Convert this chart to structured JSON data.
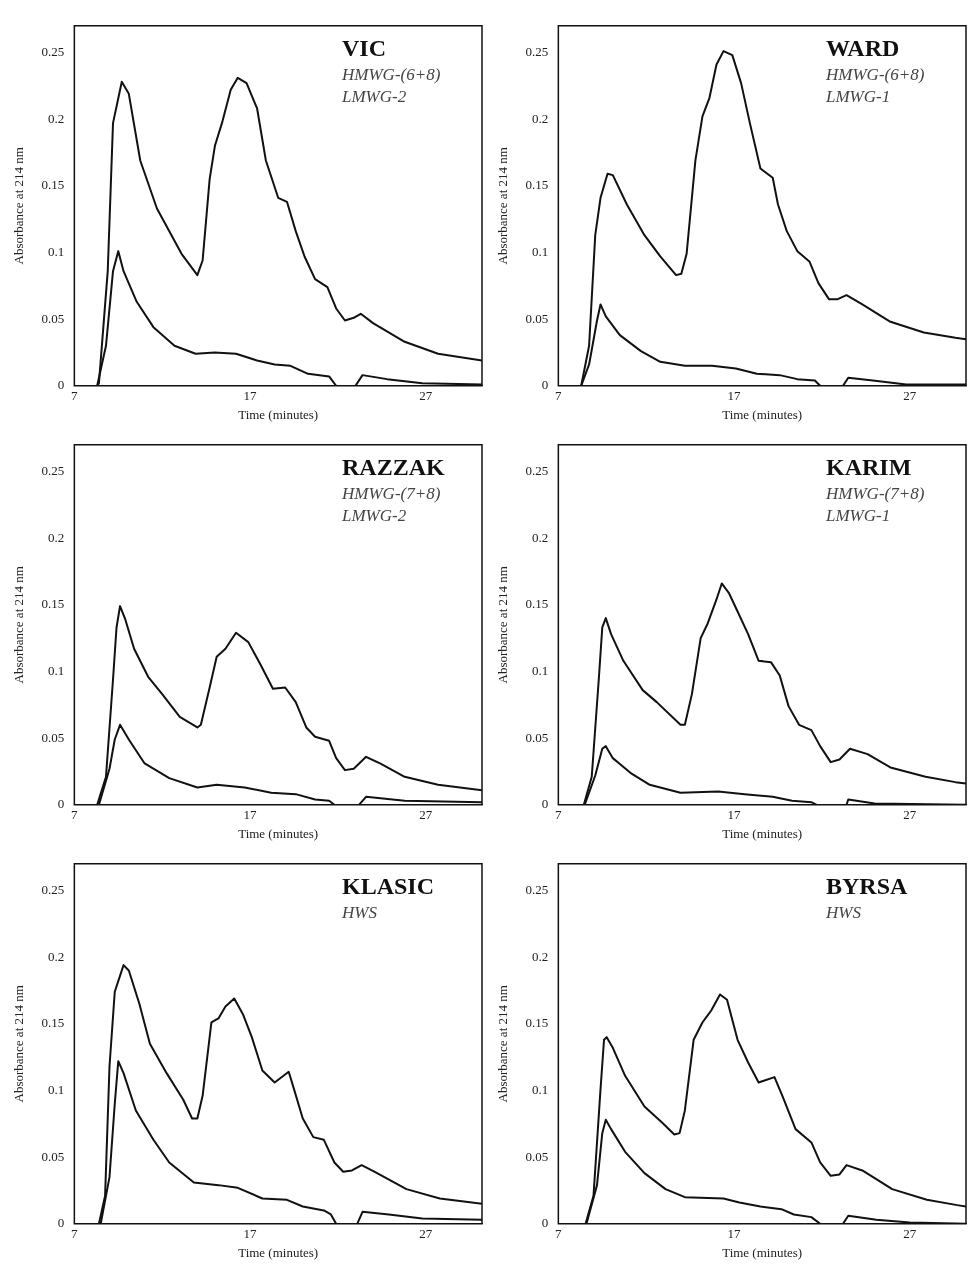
{
  "chart_data": [
    {
      "type": "line",
      "xlabel": "Time (minutes)",
      "ylabel": "Absorbance at 214 nm",
      "xlim": [
        7,
        30.2
      ],
      "ylim": [
        0,
        0.27
      ],
      "xticks": [
        7,
        17,
        27
      ],
      "yticks": [
        0,
        0.05,
        0.1,
        0.15,
        0.2,
        0.25
      ],
      "annotations": [
        "VIC",
        "HMWG-(6+8)",
        "LMWG-2"
      ],
      "series": [
        {
          "color": "#111111",
          "x": [
            8.3,
            8.4,
            8.9,
            9.2,
            9.7,
            10.1,
            10.75,
            11.7,
            13.1,
            14.0,
            14.3,
            14.7,
            15.0,
            15.4,
            15.9,
            16.3,
            16.8,
            17.4,
            17.9,
            18.6,
            19.1,
            19.6,
            20.1,
            20.7,
            21.4,
            21.9,
            22.4,
            22.9,
            23.3,
            24.0,
            25.8,
            27.7,
            30.2
          ],
          "values": [
            0,
            0.002,
            0.086,
            0.197,
            0.228,
            0.219,
            0.169,
            0.133,
            0.099,
            0.083,
            0.094,
            0.155,
            0.18,
            0.197,
            0.222,
            0.231,
            0.227,
            0.208,
            0.169,
            0.141,
            0.138,
            0.116,
            0.097,
            0.08,
            0.074,
            0.058,
            0.049,
            0.051,
            0.054,
            0.047,
            0.033,
            0.024,
            0.019
          ]
        },
        {
          "color": "#111111",
          "x": [
            8.3,
            8.8,
            9.2,
            9.5,
            9.8,
            10.55,
            11.5,
            12.7,
            13.9,
            15.0,
            16.2,
            17.4,
            18.4,
            19.3,
            20.3,
            21.5,
            21.9,
            22.5,
            23.0,
            23.4,
            24.8,
            26.8,
            30.2
          ],
          "values": [
            0,
            0.03,
            0.086,
            0.101,
            0.086,
            0.063,
            0.044,
            0.03,
            0.024,
            0.025,
            0.024,
            0.019,
            0.016,
            0.015,
            0.009,
            0.007,
            0,
            null,
            0,
            0.008,
            0.005,
            0.002,
            0.001
          ]
        }
      ]
    },
    {
      "type": "line",
      "xlabel": "Time (minutes)",
      "ylabel": "Absorbance at 214 nm",
      "xlim": [
        7,
        30.2
      ],
      "ylim": [
        0,
        0.27
      ],
      "xticks": [
        7,
        17,
        27
      ],
      "yticks": [
        0,
        0.05,
        0.1,
        0.15,
        0.2,
        0.25
      ],
      "annotations": [
        "WARD",
        "HMWG-(6+8)",
        "LMWG-1"
      ],
      "series": [
        {
          "color": "#111111",
          "x": [
            8.3,
            8.75,
            9.1,
            9.4,
            9.8,
            10.1,
            10.9,
            11.9,
            12.8,
            13.7,
            14.0,
            14.3,
            14.8,
            15.2,
            15.6,
            16.0,
            16.4,
            16.9,
            17.4,
            17.9,
            18.5,
            19.2,
            19.5,
            20.0,
            20.6,
            21.3,
            21.8,
            22.4,
            22.9,
            23.4,
            24.3,
            25.9,
            27.8,
            29.6,
            30.2
          ],
          "values": [
            0,
            0.03,
            0.113,
            0.141,
            0.159,
            0.158,
            0.136,
            0.113,
            0.097,
            0.083,
            0.084,
            0.099,
            0.169,
            0.202,
            0.216,
            0.241,
            0.251,
            0.248,
            0.227,
            0.197,
            0.163,
            0.156,
            0.136,
            0.116,
            0.101,
            0.093,
            0.077,
            0.065,
            0.065,
            0.068,
            0.061,
            0.048,
            0.04,
            0.036,
            0.035
          ]
        },
        {
          "color": "#111111",
          "x": [
            8.3,
            8.75,
            9.2,
            9.4,
            9.7,
            10.5,
            11.7,
            12.8,
            14.2,
            15.75,
            17.1,
            18.3,
            19.6,
            20.6,
            21.6,
            21.9,
            22.5,
            23.2,
            23.5,
            24.9,
            26.8,
            30.2
          ],
          "values": [
            0,
            0.016,
            0.049,
            0.061,
            0.052,
            0.038,
            0.026,
            0.018,
            0.015,
            0.015,
            0.013,
            0.009,
            0.008,
            0.005,
            0.004,
            0,
            null,
            0,
            0.006,
            0.004,
            0.001,
            0.001
          ]
        }
      ]
    },
    {
      "type": "line",
      "xlabel": "Time (minutes)",
      "ylabel": "Absorbance at 214 nm",
      "xlim": [
        7,
        30.2
      ],
      "ylim": [
        0,
        0.27
      ],
      "xticks": [
        7,
        17,
        27
      ],
      "yticks": [
        0,
        0.05,
        0.1,
        0.15,
        0.2,
        0.25
      ],
      "annotations": [
        "RAZZAK",
        "HMWG-(7+8)",
        "LMWG-2"
      ],
      "series": [
        {
          "color": "#111111",
          "x": [
            8.3,
            8.8,
            9.2,
            9.4,
            9.6,
            9.9,
            10.4,
            11.2,
            12.0,
            13.0,
            14.0,
            14.2,
            14.7,
            15.1,
            15.6,
            16.2,
            16.9,
            17.6,
            18.3,
            19.0,
            19.6,
            20.2,
            20.7,
            21.5,
            21.9,
            22.4,
            22.9,
            23.6,
            24.4,
            25.8,
            27.7,
            30.2
          ],
          "values": [
            0,
            0.021,
            0.094,
            0.133,
            0.149,
            0.139,
            0.117,
            0.096,
            0.083,
            0.066,
            0.058,
            0.06,
            0.088,
            0.111,
            0.117,
            0.129,
            0.122,
            0.105,
            0.087,
            0.088,
            0.077,
            0.058,
            0.051,
            0.048,
            0.035,
            0.026,
            0.027,
            0.036,
            0.031,
            0.021,
            0.015,
            0.011
          ]
        },
        {
          "color": "#111111",
          "x": [
            8.4,
            9.0,
            9.3,
            9.6,
            10.1,
            11.0,
            12.4,
            14.0,
            15.1,
            16.7,
            18.2,
            19.6,
            20.7,
            21.5,
            21.8,
            22.5,
            23.2,
            23.6,
            25.8,
            30.2
          ],
          "values": [
            0,
            0.027,
            0.049,
            0.06,
            0.049,
            0.031,
            0.02,
            0.013,
            0.015,
            0.013,
            0.009,
            0.008,
            0.004,
            0.003,
            0,
            null,
            0,
            0.006,
            0.003,
            0.002
          ]
        }
      ]
    },
    {
      "type": "line",
      "xlabel": "Time (minutes)",
      "ylabel": "Absorbance at 214 nm",
      "xlim": [
        7,
        30.2
      ],
      "ylim": [
        0,
        0.27
      ],
      "xticks": [
        7,
        17,
        27
      ],
      "yticks": [
        0,
        0.05,
        0.1,
        0.15,
        0.2,
        0.25
      ],
      "annotations": [
        "KARIM",
        "HMWG-(7+8)",
        "LMWG-1"
      ],
      "series": [
        {
          "color": "#111111",
          "x": [
            8.45,
            8.9,
            9.3,
            9.5,
            9.7,
            10.0,
            10.7,
            11.8,
            12.6,
            13.95,
            14.2,
            14.6,
            15.1,
            15.5,
            16.0,
            16.3,
            16.7,
            17.2,
            17.8,
            18.4,
            19.1,
            19.6,
            20.1,
            20.7,
            21.4,
            21.9,
            22.5,
            23.0,
            23.6,
            24.6,
            25.9,
            27.9,
            29.6,
            30.2
          ],
          "values": [
            0,
            0.021,
            0.094,
            0.133,
            0.14,
            0.128,
            0.108,
            0.086,
            0.077,
            0.06,
            0.06,
            0.083,
            0.125,
            0.136,
            0.154,
            0.166,
            0.159,
            0.145,
            0.128,
            0.108,
            0.107,
            0.097,
            0.074,
            0.06,
            0.056,
            0.044,
            0.032,
            0.034,
            0.042,
            0.038,
            0.028,
            0.021,
            0.017,
            0.016
          ]
        },
        {
          "color": "#111111",
          "x": [
            8.5,
            9.1,
            9.5,
            9.7,
            10.1,
            11.1,
            12.2,
            13.95,
            16.1,
            17.6,
            19.2,
            20.3,
            21.4,
            21.7,
            22.5,
            23.4,
            23.5,
            25.0,
            30.2
          ],
          "values": [
            0,
            0.022,
            0.042,
            0.044,
            0.035,
            0.024,
            0.015,
            0.009,
            0.01,
            0.008,
            0.006,
            0.003,
            0.002,
            0,
            null,
            0,
            0.004,
            0.001,
            0
          ]
        }
      ]
    },
    {
      "type": "line",
      "xlabel": "Time (minutes)",
      "ylabel": "Absorbance at 214 nm",
      "xlim": [
        7,
        30.2
      ],
      "ylim": [
        0,
        0.27
      ],
      "xticks": [
        7,
        17,
        27
      ],
      "yticks": [
        0,
        0.05,
        0.1,
        0.15,
        0.2,
        0.25
      ],
      "annotations": [
        "KLASIC",
        "HWS"
      ],
      "series": [
        {
          "color": "#111111",
          "x": [
            8.4,
            8.75,
            9.0,
            9.3,
            9.8,
            10.1,
            10.7,
            11.3,
            12.25,
            13.2,
            13.7,
            14.0,
            14.3,
            14.8,
            15.2,
            15.6,
            16.1,
            16.6,
            17.1,
            17.7,
            18.4,
            19.2,
            19.5,
            20.0,
            20.6,
            21.2,
            21.8,
            22.3,
            22.8,
            23.35,
            24.1,
            25.9,
            27.8,
            30.2
          ],
          "values": [
            0,
            0.021,
            0.118,
            0.174,
            0.194,
            0.19,
            0.165,
            0.135,
            0.113,
            0.093,
            0.079,
            0.079,
            0.096,
            0.151,
            0.154,
            0.163,
            0.169,
            0.157,
            0.14,
            0.115,
            0.106,
            0.114,
            0.101,
            0.079,
            0.065,
            0.063,
            0.046,
            0.039,
            0.04,
            0.044,
            0.039,
            0.026,
            0.019,
            0.015
          ]
        },
        {
          "color": "#111111",
          "x": [
            8.5,
            9.0,
            9.3,
            9.5,
            9.8,
            10.5,
            11.5,
            12.4,
            13.8,
            15.2,
            16.3,
            17.7,
            19.1,
            20.0,
            21.2,
            21.6,
            21.9,
            22.5,
            23.1,
            23.4,
            24.9,
            26.8,
            30.2
          ],
          "values": [
            0,
            0.035,
            0.09,
            0.122,
            0.113,
            0.085,
            0.063,
            0.046,
            0.031,
            0.029,
            0.027,
            0.019,
            0.018,
            0.013,
            0.01,
            0.007,
            0,
            null,
            0,
            0.009,
            0.007,
            0.004,
            0.003
          ]
        }
      ]
    },
    {
      "type": "line",
      "xlabel": "Time (minutes)",
      "ylabel": "Absorbance at 214 nm",
      "xlim": [
        7,
        30.2
      ],
      "ylim": [
        0,
        0.27
      ],
      "xticks": [
        7,
        17,
        27
      ],
      "yticks": [
        0,
        0.05,
        0.1,
        0.15,
        0.2,
        0.25
      ],
      "annotations": [
        "BYRSA",
        "HWS"
      ],
      "series": [
        {
          "color": "#111111",
          "x": [
            8.55,
            9.0,
            9.4,
            9.6,
            9.75,
            10.1,
            10.8,
            11.9,
            12.9,
            13.6,
            13.9,
            14.2,
            14.7,
            15.2,
            15.7,
            16.2,
            16.6,
            17.2,
            17.8,
            18.4,
            19.3,
            19.75,
            20.5,
            21.4,
            21.9,
            22.5,
            23.0,
            23.4,
            24.3,
            26.0,
            27.97,
            29.7,
            30.2
          ],
          "values": [
            0,
            0.021,
            0.101,
            0.138,
            0.14,
            0.132,
            0.111,
            0.088,
            0.076,
            0.067,
            0.068,
            0.085,
            0.138,
            0.151,
            0.16,
            0.172,
            0.168,
            0.138,
            0.121,
            0.106,
            0.11,
            0.096,
            0.071,
            0.061,
            0.046,
            0.036,
            0.037,
            0.044,
            0.04,
            0.026,
            0.018,
            0.014,
            0.013
          ]
        },
        {
          "color": "#111111",
          "x": [
            8.6,
            9.2,
            9.5,
            9.7,
            10.0,
            10.8,
            11.9,
            13.1,
            14.2,
            16.4,
            17.3,
            18.5,
            19.7,
            20.4,
            21.4,
            21.9,
            22.5,
            23.2,
            23.5,
            25.1,
            27.0,
            30.2
          ],
          "values": [
            0,
            0.029,
            0.068,
            0.078,
            0.071,
            0.054,
            0.038,
            0.026,
            0.02,
            0.019,
            0.016,
            0.013,
            0.011,
            0.007,
            0.005,
            0,
            null,
            0,
            0.006,
            0.003,
            0.001,
            0
          ]
        }
      ]
    }
  ]
}
